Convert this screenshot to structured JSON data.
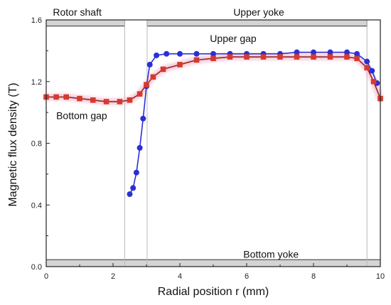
{
  "chart_data": {
    "type": "line",
    "xlabel": "Radial position r (mm)",
    "ylabel": "Magnetic flux density (T)",
    "xlim": [
      0,
      10
    ],
    "ylim": [
      0.0,
      1.6
    ],
    "x_ticks": [
      "0",
      "2",
      "4",
      "6",
      "8",
      "10"
    ],
    "y_ticks": [
      "0.0",
      "0.4",
      "0.8",
      "1.2",
      "1.6"
    ],
    "grid": false,
    "annotations": [
      {
        "text": "Rotor shaft",
        "x": 0.2,
        "y": 1.65
      },
      {
        "text": "Upper yoke",
        "x": 5.6,
        "y": 1.65
      },
      {
        "text": "Upper gap",
        "x": 4.9,
        "y": 1.48
      },
      {
        "text": "Bottom gap",
        "x": 0.3,
        "y": 0.98
      },
      {
        "text": "Bottom yoke",
        "x": 5.9,
        "y": 0.08
      }
    ],
    "regions": [
      {
        "name": "rotor-shaft-bar",
        "x0": 0.0,
        "x1": 2.35,
        "y0": 1.56,
        "y1": 1.6
      },
      {
        "name": "upper-yoke-bar",
        "x0": 3.02,
        "x1": 9.6,
        "y0": 1.56,
        "y1": 1.6
      },
      {
        "name": "bottom-yoke-bar",
        "x0": 0.0,
        "x1": 10.0,
        "y0": 0.0,
        "y1": 0.045
      }
    ],
    "vlines": [
      2.35,
      3.02,
      9.6
    ],
    "series": [
      {
        "color": "#2b2fd6",
        "line_color": "#2b2fd6",
        "marker": "circle",
        "x": [
          2.5,
          2.6,
          2.7,
          2.8,
          2.9,
          3.0,
          3.1,
          3.3,
          3.6,
          4.0,
          4.5,
          5.0,
          5.5,
          6.0,
          6.5,
          7.0,
          7.5,
          8.0,
          8.5,
          9.0,
          9.3,
          9.6,
          9.75,
          9.9
        ],
        "y": [
          0.47,
          0.51,
          0.61,
          0.77,
          0.96,
          1.17,
          1.31,
          1.37,
          1.38,
          1.38,
          1.38,
          1.38,
          1.38,
          1.38,
          1.38,
          1.38,
          1.39,
          1.39,
          1.39,
          1.39,
          1.38,
          1.33,
          1.27,
          1.19
        ]
      },
      {
        "color": "#d63a2e",
        "line_color": "#8e2a1c",
        "marker": "square",
        "x": [
          0.0,
          0.3,
          0.6,
          1.0,
          1.4,
          1.8,
          2.2,
          2.5,
          2.8,
          3.0,
          3.2,
          3.5,
          4.0,
          4.5,
          5.0,
          5.5,
          6.0,
          6.5,
          7.0,
          7.5,
          8.0,
          8.5,
          9.0,
          9.3,
          9.6,
          9.8,
          10.0
        ],
        "y": [
          1.1,
          1.1,
          1.1,
          1.09,
          1.08,
          1.07,
          1.07,
          1.08,
          1.12,
          1.18,
          1.23,
          1.28,
          1.31,
          1.34,
          1.35,
          1.36,
          1.36,
          1.36,
          1.36,
          1.36,
          1.36,
          1.36,
          1.36,
          1.35,
          1.29,
          1.2,
          1.09
        ]
      }
    ],
    "bar_fill": "#d4d4d4",
    "highlight_color": "#f5b8cf"
  }
}
